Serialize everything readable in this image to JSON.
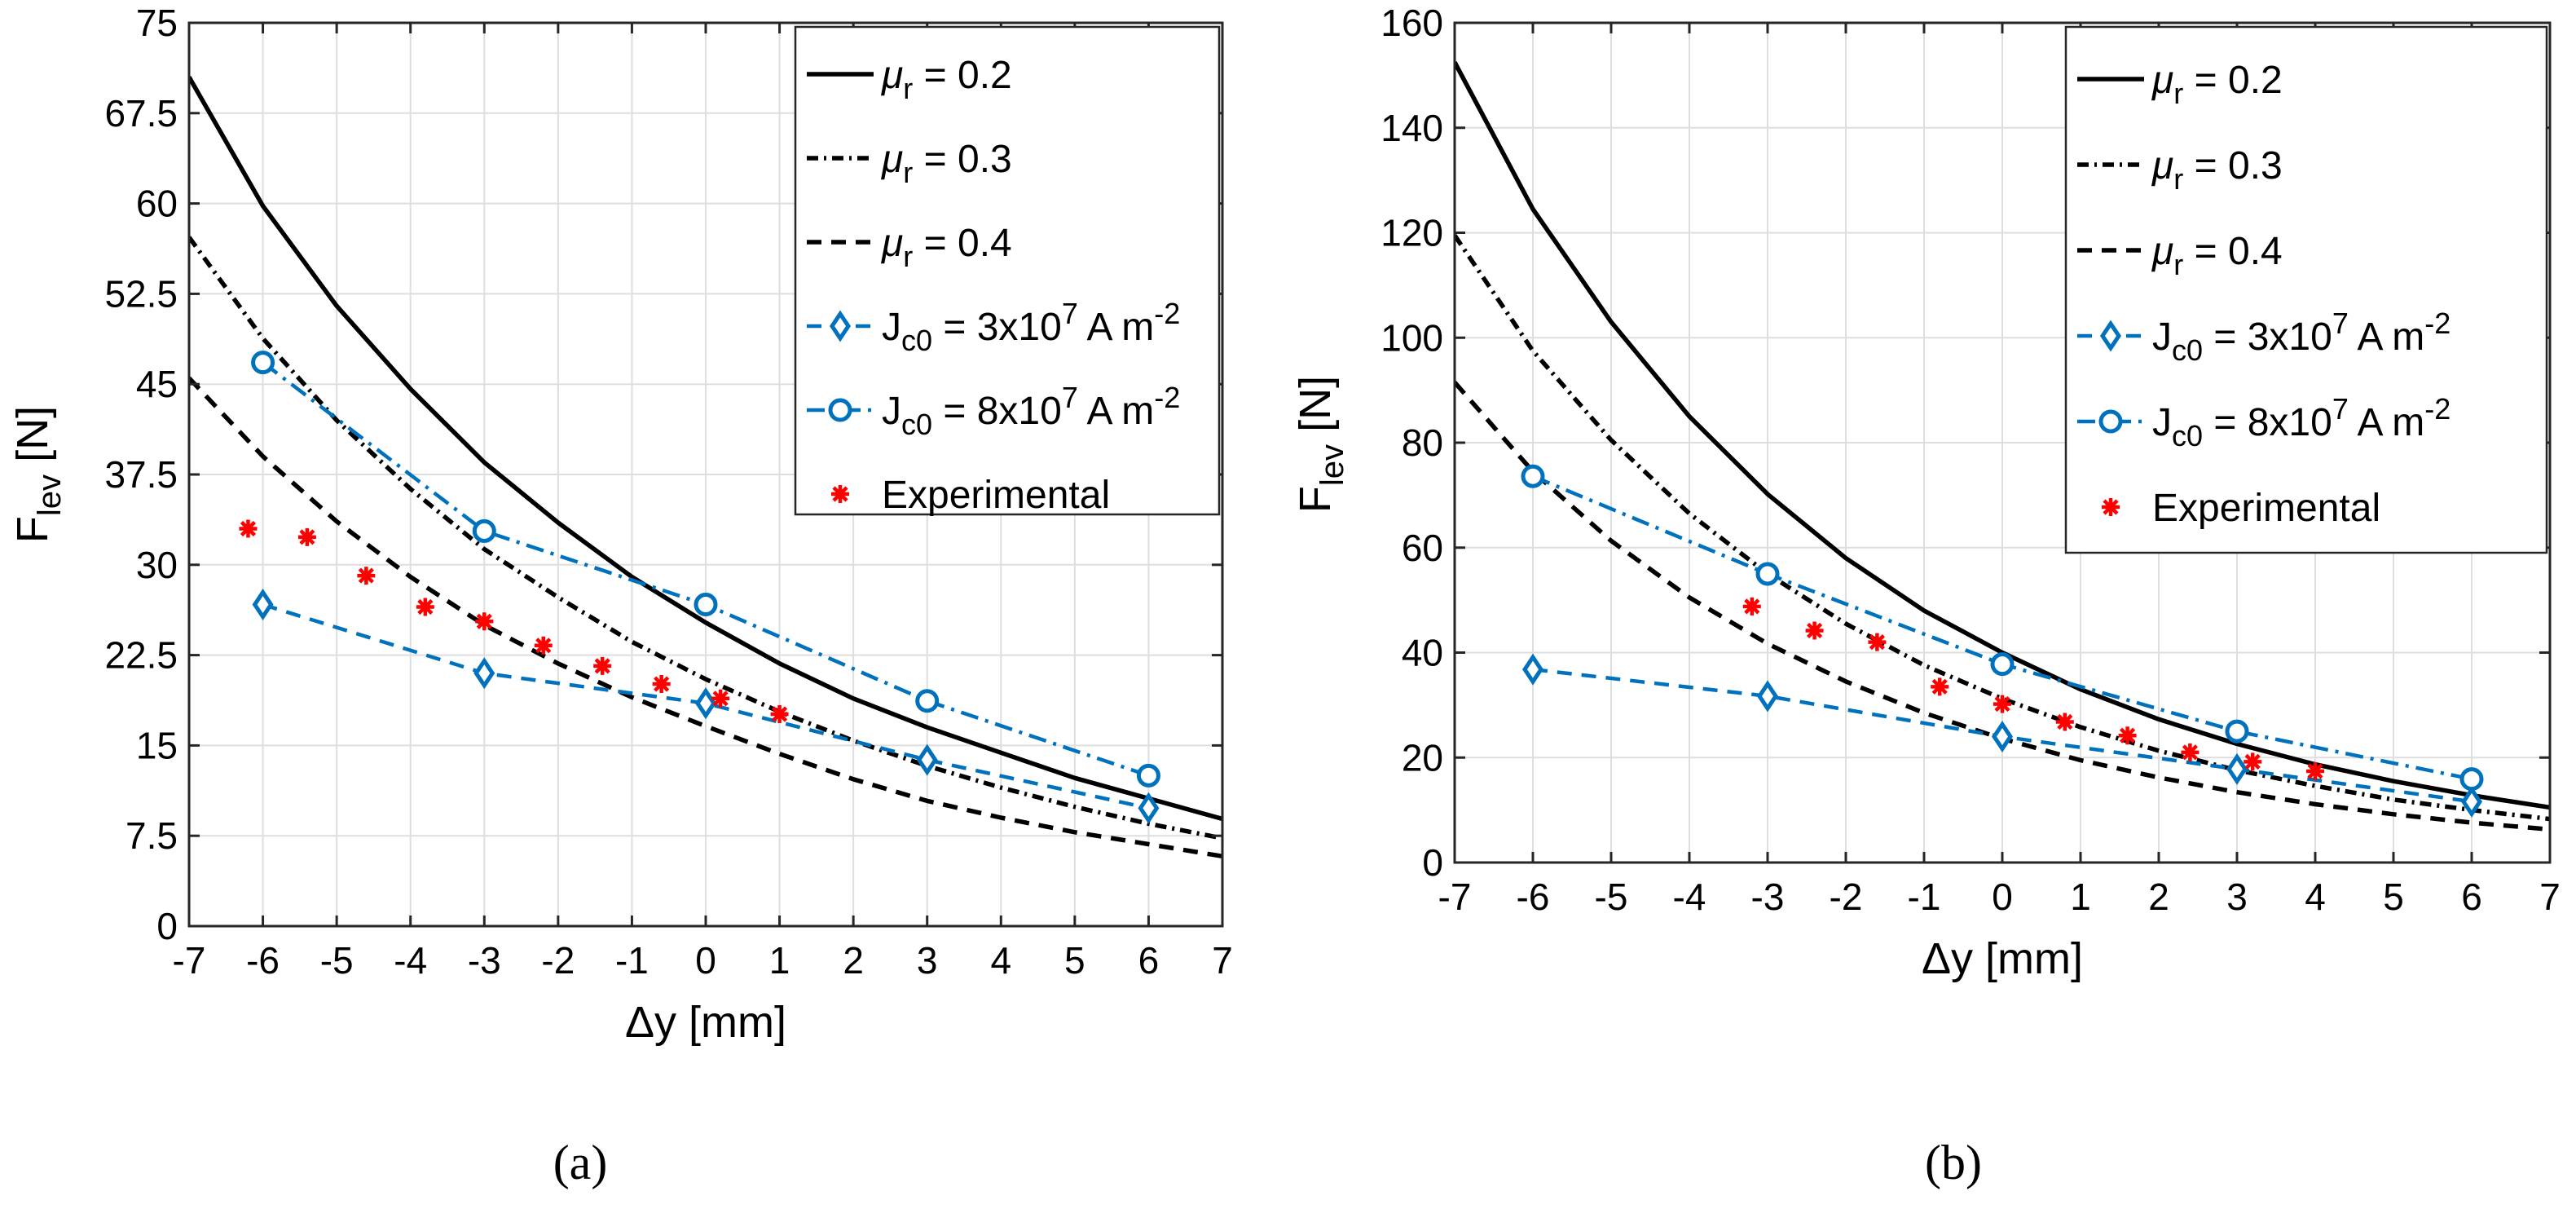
{
  "figure": {
    "panels": [
      "(a)",
      "(b)"
    ]
  },
  "chart_data": [
    {
      "type": "line",
      "panel_label": "(a)",
      "xlabel": "Δy [mm]",
      "ylabel_main": "F",
      "ylabel_sub": "lev",
      "ylabel_unit": " [N]",
      "xlim": [
        -7,
        7
      ],
      "ylim": [
        0,
        75
      ],
      "xticks": [
        -7,
        -6,
        -5,
        -4,
        -3,
        -2,
        -1,
        0,
        1,
        2,
        3,
        4,
        5,
        6,
        7
      ],
      "yticks": [
        0,
        7.5,
        15,
        22.5,
        30,
        37.5,
        45,
        52.5,
        60,
        67.5,
        75
      ],
      "grid": true,
      "legend_position": "top-right",
      "series": [
        {
          "name": "μr = 0.2",
          "legend_symbol": "μ",
          "legend_sub": "r",
          "legend_rest": " = 0.2",
          "style": "solid",
          "color": "#000000",
          "x": [
            -7,
            -6,
            -5,
            -4,
            -3,
            -2,
            -1,
            0,
            1,
            2,
            3,
            4,
            5,
            6,
            7
          ],
          "y": [
            70.5,
            59.8,
            51.5,
            44.6,
            38.5,
            33.5,
            29.0,
            25.2,
            21.8,
            18.9,
            16.5,
            14.4,
            12.3,
            10.6,
            8.9
          ]
        },
        {
          "name": "μr = 0.3",
          "legend_symbol": "μ",
          "legend_sub": "r",
          "legend_rest": " = 0.3",
          "style": "dashdot",
          "color": "#000000",
          "x": [
            -7,
            -6,
            -5,
            -4,
            -3,
            -2,
            -1,
            0,
            1,
            2,
            3,
            4,
            5,
            6,
            7
          ],
          "y": [
            57.2,
            48.8,
            42.0,
            36.3,
            31.3,
            27.3,
            23.6,
            20.5,
            17.8,
            15.4,
            13.3,
            11.5,
            9.9,
            8.5,
            7.3
          ]
        },
        {
          "name": "μr = 0.4",
          "legend_symbol": "μ",
          "legend_sub": "r",
          "legend_rest": " = 0.4",
          "style": "dashed",
          "color": "#000000",
          "x": [
            -7,
            -6,
            -5,
            -4,
            -3,
            -2,
            -1,
            0,
            1,
            2,
            3,
            4,
            5,
            6,
            7
          ],
          "y": [
            45.5,
            39.0,
            33.6,
            29.0,
            25.0,
            21.8,
            19.0,
            16.6,
            14.3,
            12.2,
            10.4,
            9.0,
            7.8,
            6.8,
            5.8
          ]
        },
        {
          "name": "Jc0 = 3x10^7 A m^-2",
          "legend_symbol": "J",
          "legend_sub": "c0",
          "legend_rest": " = 3x10",
          "legend_exp": "7",
          "legend_unit": " A m",
          "legend_unit_exp": "-2",
          "style": "dashed-marker",
          "marker": "diamond",
          "color": "#0072BD",
          "x": [
            -6,
            -3,
            0,
            3,
            6
          ],
          "y": [
            26.7,
            21.0,
            18.5,
            13.8,
            9.8
          ]
        },
        {
          "name": "Jc0 = 8x10^7 A m^-2",
          "legend_symbol": "J",
          "legend_sub": "c0",
          "legend_rest": " = 8x10",
          "legend_exp": "7",
          "legend_unit": " A m",
          "legend_unit_exp": "-2",
          "style": "dashdot-marker",
          "marker": "circle",
          "color": "#0072BD",
          "x": [
            -6,
            -3,
            0,
            3,
            6
          ],
          "y": [
            46.8,
            32.8,
            26.7,
            18.7,
            12.5
          ]
        },
        {
          "name": "Experimental",
          "legend_symbol": "",
          "legend_sub": "",
          "legend_rest": "Experimental",
          "style": "markers",
          "marker": "star",
          "color": "#FF0000",
          "x": [
            -6.2,
            -5.4,
            -4.6,
            -3.8,
            -3.0,
            -2.2,
            -1.4,
            -0.6,
            0.2,
            1.0
          ],
          "y": [
            33.0,
            32.3,
            29.1,
            26.5,
            25.3,
            23.3,
            21.6,
            20.1,
            18.9,
            17.6
          ]
        }
      ]
    },
    {
      "type": "line",
      "panel_label": "(b)",
      "xlabel": "Δy [mm]",
      "ylabel_main": "F",
      "ylabel_sub": "lev",
      "ylabel_unit": " [N]",
      "xlim": [
        -7,
        7
      ],
      "ylim": [
        0,
        160
      ],
      "xticks": [
        -7,
        -6,
        -5,
        -4,
        -3,
        -2,
        -1,
        0,
        1,
        2,
        3,
        4,
        5,
        6,
        7
      ],
      "yticks": [
        0,
        20,
        40,
        60,
        80,
        100,
        120,
        140,
        160
      ],
      "grid": true,
      "legend_position": "top-right",
      "series": [
        {
          "name": "μr = 0.2",
          "legend_symbol": "μ",
          "legend_sub": "r",
          "legend_rest": " = 0.2",
          "style": "solid",
          "color": "#000000",
          "x": [
            -7,
            -6,
            -5,
            -4,
            -3,
            -2,
            -1,
            0,
            1,
            2,
            3,
            4,
            5,
            6,
            7
          ],
          "y": [
            152.5,
            124.5,
            103.0,
            85.0,
            70.2,
            58.0,
            48.0,
            40.0,
            33.0,
            27.3,
            22.6,
            18.7,
            15.5,
            12.8,
            10.5
          ]
        },
        {
          "name": "μr = 0.3",
          "legend_symbol": "μ",
          "legend_sub": "r",
          "legend_rest": " = 0.3",
          "style": "dashdot",
          "color": "#000000",
          "x": [
            -7,
            -6,
            -5,
            -4,
            -3,
            -2,
            -1,
            0,
            1,
            2,
            3,
            4,
            5,
            6,
            7
          ],
          "y": [
            119.5,
            97.5,
            80.5,
            66.5,
            55.0,
            45.5,
            37.6,
            31.2,
            25.8,
            21.3,
            17.6,
            14.6,
            12.0,
            10.0,
            8.3
          ]
        },
        {
          "name": "μr = 0.4",
          "legend_symbol": "μ",
          "legend_sub": "r",
          "legend_rest": " = 0.4",
          "style": "dashed",
          "color": "#000000",
          "x": [
            -7,
            -6,
            -5,
            -4,
            -3,
            -2,
            -1,
            0,
            1,
            2,
            3,
            4,
            5,
            6,
            7
          ],
          "y": [
            91.5,
            74.5,
            61.3,
            50.5,
            41.7,
            34.5,
            28.5,
            23.6,
            19.5,
            16.2,
            13.4,
            11.1,
            9.2,
            7.6,
            6.3
          ]
        },
        {
          "name": "Jc0 = 3x10^7 A m^-2",
          "legend_symbol": "J",
          "legend_sub": "c0",
          "legend_rest": " = 3x10",
          "legend_exp": "7",
          "legend_unit": " A m",
          "legend_unit_exp": "-2",
          "style": "dashed-marker",
          "marker": "diamond",
          "color": "#0072BD",
          "x": [
            -6,
            -3,
            0,
            3,
            6
          ],
          "y": [
            36.8,
            31.7,
            24.0,
            17.8,
            11.6
          ]
        },
        {
          "name": "Jc0 = 8x10^7 A m^-2",
          "legend_symbol": "J",
          "legend_sub": "c0",
          "legend_rest": " = 8x10",
          "legend_exp": "7",
          "legend_unit": " A m",
          "legend_unit_exp": "-2",
          "style": "dashdot-marker",
          "marker": "circle",
          "color": "#0072BD",
          "x": [
            -6,
            -3,
            0,
            3,
            6
          ],
          "y": [
            73.6,
            55.0,
            37.8,
            25.0,
            15.9
          ]
        },
        {
          "name": "Experimental",
          "legend_symbol": "",
          "legend_sub": "",
          "legend_rest": "Experimental",
          "style": "markers",
          "marker": "star",
          "color": "#FF0000",
          "x": [
            -3.2,
            -2.4,
            -1.6,
            -0.8,
            0.0,
            0.8,
            1.6,
            2.4,
            3.2,
            4.0
          ],
          "y": [
            48.8,
            44.2,
            42.0,
            33.5,
            30.2,
            26.8,
            24.2,
            21.0,
            19.2,
            17.4
          ]
        }
      ]
    }
  ]
}
